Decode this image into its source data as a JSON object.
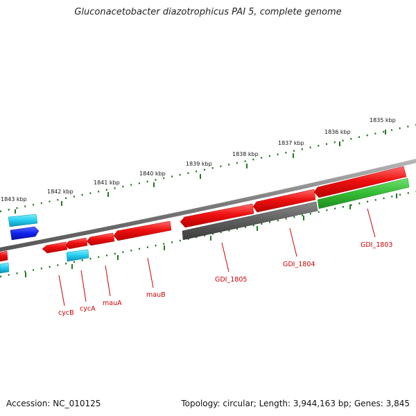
{
  "title": "Gluconacetobacter diazotrophicus PAI 5, complete genome",
  "footer": {
    "accession": "Accession: NC_010125",
    "summary": "Topology: circular; Length: 3,944,163 bp; Genes: 3,845"
  },
  "scale_labels": [
    "1843 kbp",
    "1842 kbp",
    "1841 kbp",
    "1840 kbp",
    "1839 kbp",
    "1838 kbp",
    "1837 kbp",
    "1836 kbp",
    "1835 kbp"
  ],
  "gene_labels": [
    "cycB",
    "cycA",
    "mauA",
    "mauB",
    "GDI_1805",
    "GDI_1804",
    "GDI_1803"
  ],
  "colors": {
    "backbone": "#808080",
    "red_gene": "#ee1111",
    "grey_gene": "#666666",
    "green_gene": "#33bb33",
    "cyan_gene": "#22ccee",
    "blue_gene": "#1122ee",
    "tick": "#227722",
    "label": "#cc0000"
  }
}
